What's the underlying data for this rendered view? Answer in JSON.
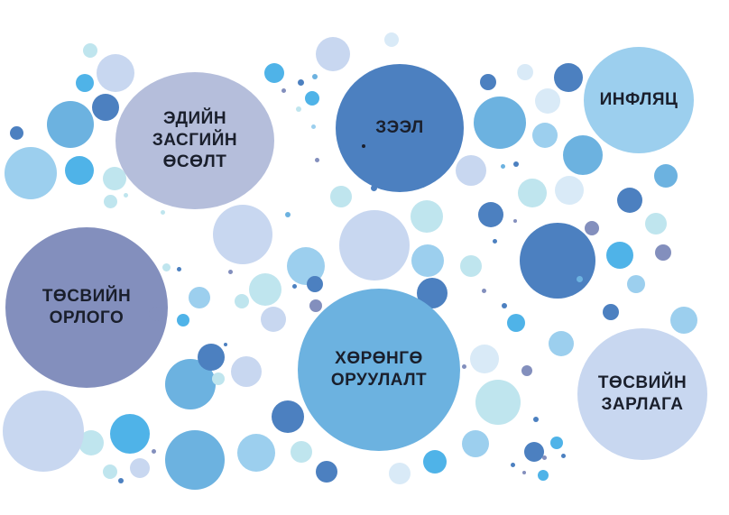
{
  "concepts": {
    "economic_growth": {
      "line1": "ЭДИЙН",
      "line2": "ЗАСГИЙН",
      "line3": "ӨСӨЛТ",
      "color": "#b5bedb"
    },
    "loan": {
      "line1": "ЗЭЭЛ",
      "color": "#4c80c0"
    },
    "inflation": {
      "line1": "ИНФЛЯЦ",
      "color": "#9ccfee"
    },
    "budget_revenue": {
      "line1": "ТӨСВИЙН",
      "line2": "ОРЛОГО",
      "color": "#838fbd"
    },
    "investment": {
      "line1": "ХӨРӨНГӨ",
      "line2": "ОРУУЛАЛТ",
      "color": "#6cb2e0"
    },
    "budget_expenditure": {
      "line1": "ТӨСВИЙН",
      "line2": "ЗАРЛАГА",
      "color": "#c8d7f0"
    }
  },
  "palette": {
    "text": "#1a1f2c",
    "light_blue": "#9ccfee",
    "mid_blue": "#6cb2e0",
    "dark_blue": "#4c80c0",
    "sky": "#4fb3e8",
    "pale": "#c8d7f0",
    "cyan_pale": "#bfe5ee",
    "lavender": "#838fbd"
  }
}
